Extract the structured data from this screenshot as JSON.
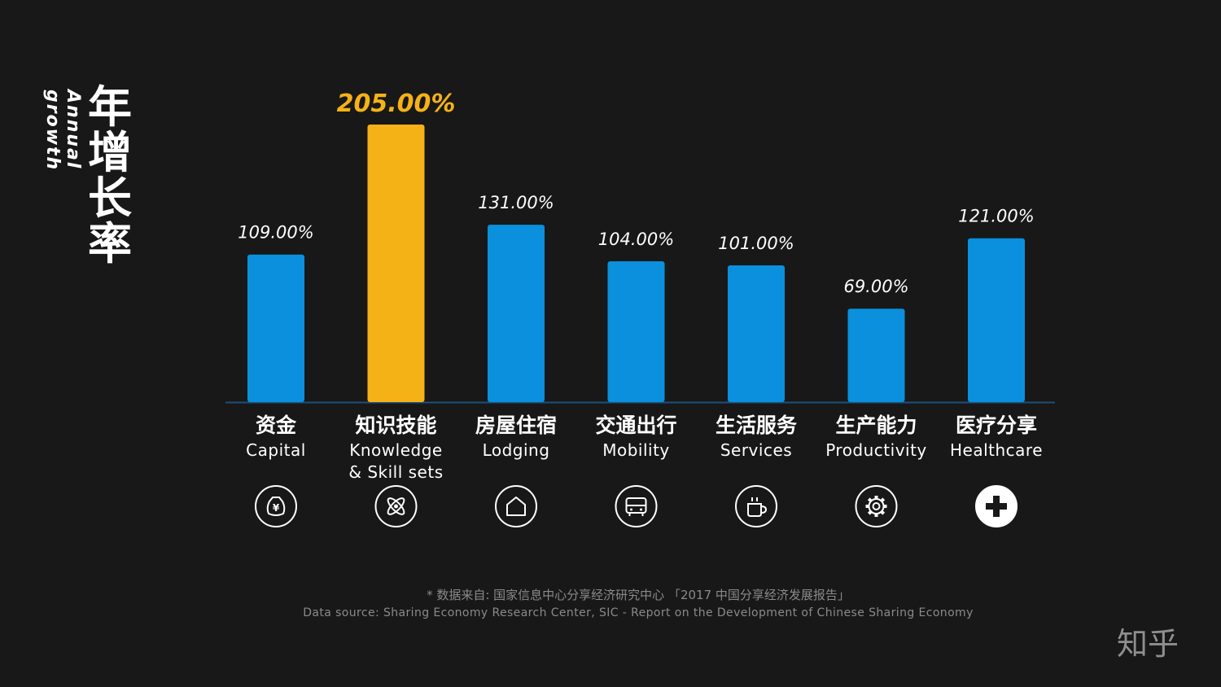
{
  "title": {
    "cn": "年增长率",
    "en": "Annual growth"
  },
  "chart_data": {
    "type": "bar",
    "categories": [
      {
        "cn": "资金",
        "en": "Capital",
        "icon": "money-bag-icon"
      },
      {
        "cn": "知识技能",
        "en": "Knowledge & Skill sets",
        "icon": "atom-icon"
      },
      {
        "cn": "房屋住宿",
        "en": "Lodging",
        "icon": "house-icon"
      },
      {
        "cn": "交通出行",
        "en": "Mobility",
        "icon": "bus-icon"
      },
      {
        "cn": "生活服务",
        "en": "Services",
        "icon": "coffee-cup-icon"
      },
      {
        "cn": "生产能力",
        "en": "Productivity",
        "icon": "gear-icon"
      },
      {
        "cn": "医疗分享",
        "en": "Healthcare",
        "icon": "medical-cross-icon"
      }
    ],
    "values": [
      109,
      205,
      131,
      104,
      101,
      69,
      121
    ],
    "value_labels": [
      "109.00%",
      "205.00%",
      "131.00%",
      "104.00%",
      "101.00%",
      "69.00%",
      "121.00%"
    ],
    "highlight_index": 1,
    "colors": {
      "bar": "#0a90dc",
      "highlight": "#f5b217",
      "axis": "#1f4f7a",
      "label": "#ffffff",
      "highlight_label": "#f5b217"
    },
    "ylim": [
      0,
      205
    ],
    "grid": false
  },
  "source": {
    "cn": "* 数据来自: 国家信息中心分享经济研究中心 「2017 中国分享经济发展报告」",
    "en": "Data source: Sharing Economy Research Center, SIC - Report on the Development of Chinese Sharing Economy"
  },
  "logo": "知乎"
}
